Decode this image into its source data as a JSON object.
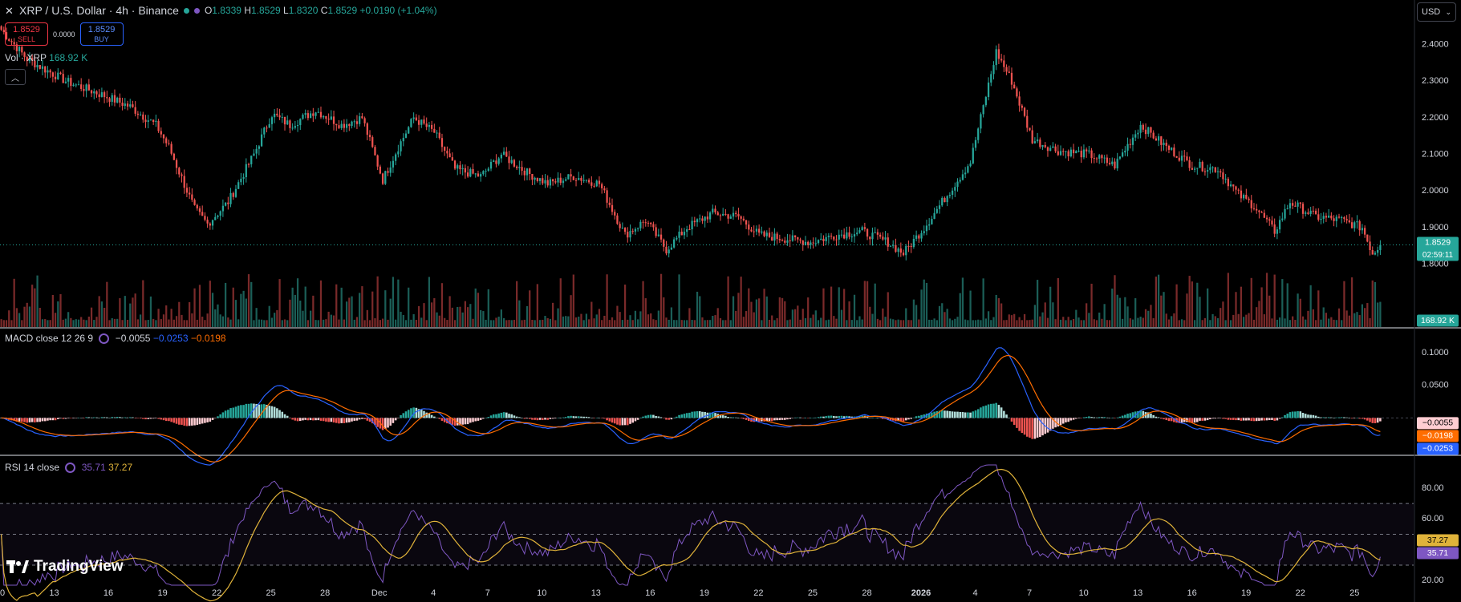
{
  "header": {
    "symbol_title": "XRP / U.S. Dollar · 4h · Binance",
    "ohlc": {
      "o_label": "O",
      "o": "1.8339",
      "h_label": "H",
      "h": "1.8529",
      "l_label": "L",
      "l": "1.8320",
      "c_label": "C",
      "c": "1.8529",
      "change": "+0.0190 (+1.04%)"
    },
    "sell": {
      "price": "1.8529",
      "label": "SELL"
    },
    "buy": {
      "price": "1.8529",
      "label": "BUY"
    },
    "spread": "0.0000",
    "currency": "USD"
  },
  "volume_legend": {
    "label": "Vol · XRP",
    "value": "168.92 K"
  },
  "macd_legend": {
    "label": "MACD close 12 26 9",
    "hist": "−0.0055",
    "macd": "−0.0253",
    "signal": "−0.0198"
  },
  "rsi_legend": {
    "label": "RSI 14 close",
    "rsi": "35.71",
    "ma": "37.27"
  },
  "branding": "TradingView",
  "colors": {
    "up": "#26a69a",
    "down": "#ef5350",
    "macd": "#2962ff",
    "signal": "#ff6d00",
    "rsi": "#7e57c2",
    "rsi_ma": "#e0b33a",
    "current": "#26a69a"
  },
  "chart_data": {
    "type": "candlestick",
    "interval": "4h",
    "x_ticks": [
      "0",
      "13",
      "16",
      "19",
      "22",
      "25",
      "28",
      "Dec",
      "4",
      "7",
      "10",
      "13",
      "16",
      "19",
      "22",
      "25",
      "28",
      "2026",
      "4",
      "7",
      "10",
      "13",
      "16",
      "19",
      "22",
      "25"
    ],
    "price_axis": {
      "ticks": [
        "2.4000",
        "2.3000",
        "2.2000",
        "2.1000",
        "2.0000",
        "1.9000",
        "1.8000"
      ],
      "range": [
        1.76,
        2.46
      ]
    },
    "price_path": [
      {
        "i": 0,
        "p": 2.44
      },
      {
        "i": 10,
        "p": 2.36
      },
      {
        "i": 25,
        "p": 2.3
      },
      {
        "i": 40,
        "p": 2.26
      },
      {
        "i": 50,
        "p": 2.23
      },
      {
        "i": 60,
        "p": 2.18
      },
      {
        "i": 65,
        "p": 2.12
      },
      {
        "i": 75,
        "p": 1.95
      },
      {
        "i": 80,
        "p": 1.91
      },
      {
        "i": 88,
        "p": 1.97
      },
      {
        "i": 98,
        "p": 2.1
      },
      {
        "i": 105,
        "p": 2.21
      },
      {
        "i": 112,
        "p": 2.18
      },
      {
        "i": 122,
        "p": 2.22
      },
      {
        "i": 132,
        "p": 2.18
      },
      {
        "i": 140,
        "p": 2.2
      },
      {
        "i": 148,
        "p": 2.03
      },
      {
        "i": 154,
        "p": 2.12
      },
      {
        "i": 160,
        "p": 2.2
      },
      {
        "i": 168,
        "p": 2.16
      },
      {
        "i": 176,
        "p": 2.06
      },
      {
        "i": 186,
        "p": 2.04
      },
      {
        "i": 194,
        "p": 2.1
      },
      {
        "i": 204,
        "p": 2.05
      },
      {
        "i": 212,
        "p": 2.02
      },
      {
        "i": 222,
        "p": 2.04
      },
      {
        "i": 232,
        "p": 2.02
      },
      {
        "i": 242,
        "p": 1.88
      },
      {
        "i": 250,
        "p": 1.92
      },
      {
        "i": 258,
        "p": 1.84
      },
      {
        "i": 266,
        "p": 1.9
      },
      {
        "i": 276,
        "p": 1.94
      },
      {
        "i": 286,
        "p": 1.93
      },
      {
        "i": 294,
        "p": 1.88
      },
      {
        "i": 304,
        "p": 1.87
      },
      {
        "i": 314,
        "p": 1.86
      },
      {
        "i": 324,
        "p": 1.88
      },
      {
        "i": 334,
        "p": 1.89
      },
      {
        "i": 344,
        "p": 1.86
      },
      {
        "i": 350,
        "p": 1.83
      },
      {
        "i": 358,
        "p": 1.9
      },
      {
        "i": 366,
        "p": 1.98
      },
      {
        "i": 376,
        "p": 2.08
      },
      {
        "i": 386,
        "p": 2.38
      },
      {
        "i": 392,
        "p": 2.3
      },
      {
        "i": 400,
        "p": 2.14
      },
      {
        "i": 410,
        "p": 2.11
      },
      {
        "i": 422,
        "p": 2.1
      },
      {
        "i": 432,
        "p": 2.07
      },
      {
        "i": 442,
        "p": 2.18
      },
      {
        "i": 452,
        "p": 2.12
      },
      {
        "i": 462,
        "p": 2.07
      },
      {
        "i": 472,
        "p": 2.06
      },
      {
        "i": 480,
        "p": 1.99
      },
      {
        "i": 486,
        "p": 1.96
      },
      {
        "i": 494,
        "p": 1.89
      },
      {
        "i": 500,
        "p": 1.97
      },
      {
        "i": 510,
        "p": 1.93
      },
      {
        "i": 520,
        "p": 1.92
      },
      {
        "i": 528,
        "p": 1.9
      },
      {
        "i": 532,
        "p": 1.83
      },
      {
        "i": 535,
        "p": 1.8529
      }
    ],
    "n_bars": 536,
    "current_price": "1.8529",
    "countdown": "02:59:11",
    "volume": {
      "current": "168.92 K"
    },
    "macd": {
      "axis_ticks": [
        "0.1000",
        "0.0500"
      ],
      "range": [
        -0.055,
        0.125
      ],
      "hist": "−0.0055",
      "signal": "−0.0198",
      "macd": "−0.0253"
    },
    "rsi": {
      "axis_ticks": [
        "80.00",
        "60.00",
        "20.00"
      ],
      "range": [
        17,
        95
      ],
      "upper_band": 70,
      "lower_band": 30,
      "mid": 50,
      "rsi": "35.71",
      "ma": "37.27"
    }
  }
}
